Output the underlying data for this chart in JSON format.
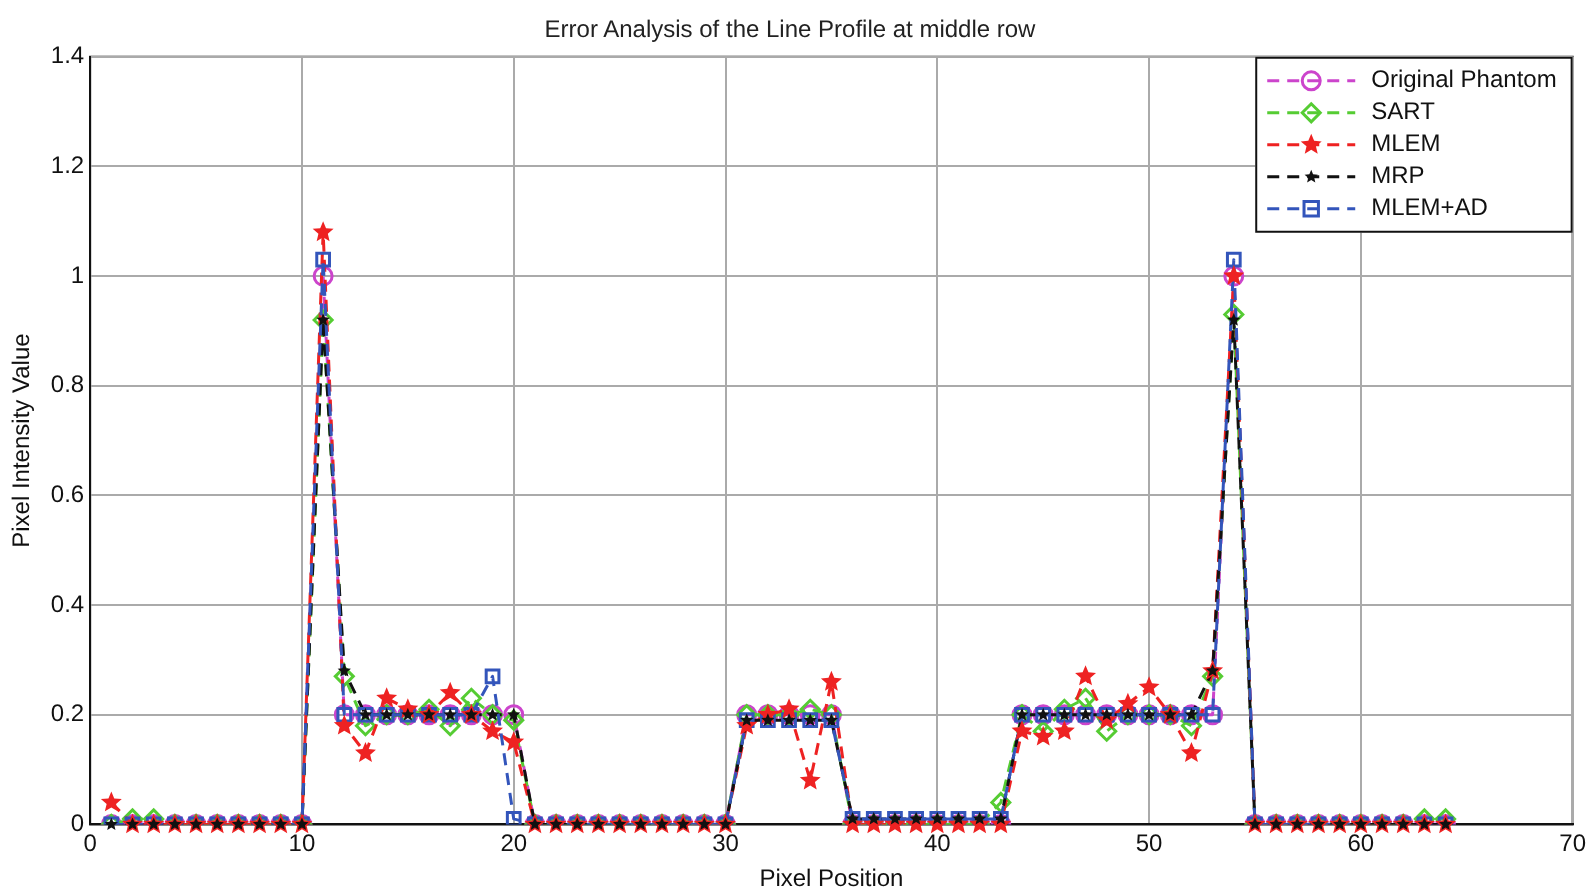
{
  "chart_data": {
    "type": "line",
    "title": "Error Analysis of the Line Profile at middle row",
    "xlabel": "Pixel Position",
    "ylabel": "Pixel Intensity Value",
    "x": [
      1,
      2,
      3,
      4,
      5,
      6,
      7,
      8,
      9,
      10,
      11,
      12,
      13,
      14,
      15,
      16,
      17,
      18,
      19,
      20,
      21,
      22,
      23,
      24,
      25,
      26,
      27,
      28,
      29,
      30,
      31,
      32,
      33,
      34,
      35,
      36,
      37,
      38,
      39,
      40,
      41,
      42,
      43,
      44,
      45,
      46,
      47,
      48,
      49,
      50,
      51,
      52,
      53,
      54,
      55,
      56,
      57,
      58,
      59,
      60,
      61,
      62,
      63,
      64
    ],
    "series": [
      {
        "name": "Original Phantom",
        "color": "#cc44cc",
        "marker": "circle",
        "values": [
          0,
          0,
          0,
          0,
          0,
          0,
          0,
          0,
          0,
          0,
          1,
          0.2,
          0.2,
          0.2,
          0.2,
          0.2,
          0.2,
          0.2,
          0.2,
          0.2,
          0,
          0,
          0,
          0,
          0,
          0,
          0,
          0,
          0,
          0,
          0.2,
          0.2,
          0.2,
          0.2,
          0.2,
          0,
          0,
          0,
          0,
          0,
          0,
          0,
          0,
          0.2,
          0.2,
          0.2,
          0.2,
          0.2,
          0.2,
          0.2,
          0.2,
          0.2,
          0.2,
          1,
          0,
          0,
          0,
          0,
          0,
          0,
          0,
          0,
          0,
          0
        ]
      },
      {
        "name": "SART",
        "color": "#55cc33",
        "marker": "diamond",
        "values": [
          0,
          0.01,
          0.01,
          0,
          0,
          0,
          0,
          0,
          0,
          0,
          0.92,
          0.27,
          0.18,
          0.2,
          0.2,
          0.21,
          0.18,
          0.23,
          0.2,
          0.19,
          0,
          0,
          0,
          0,
          0,
          0,
          0,
          0,
          0,
          0,
          0.2,
          0.2,
          0.2,
          0.21,
          0.2,
          0,
          0,
          0,
          0,
          0,
          0,
          0,
          0.04,
          0.2,
          0.17,
          0.21,
          0.23,
          0.17,
          0.2,
          0.2,
          0.2,
          0.18,
          0.27,
          0.93,
          0,
          0,
          0,
          0,
          0,
          0,
          0,
          0,
          0.01,
          0.01
        ]
      },
      {
        "name": "MLEM",
        "color": "#ee2222",
        "marker": "star",
        "values": [
          0.04,
          0,
          0,
          0,
          0,
          0,
          0,
          0,
          0,
          0,
          1.08,
          0.18,
          0.13,
          0.23,
          0.21,
          0.2,
          0.24,
          0.2,
          0.17,
          0.15,
          0,
          0,
          0,
          0,
          0,
          0,
          0,
          0,
          0,
          0,
          0.18,
          0.2,
          0.21,
          0.08,
          0.26,
          0,
          0,
          0,
          0,
          0,
          0,
          0,
          0,
          0.17,
          0.16,
          0.17,
          0.27,
          0.19,
          0.22,
          0.25,
          0.2,
          0.13,
          0.28,
          1,
          0,
          0,
          0,
          0,
          0,
          0,
          0,
          0,
          0,
          0
        ]
      },
      {
        "name": "MRP",
        "color": "#111111",
        "marker": "star",
        "values": [
          0,
          0,
          0,
          0,
          0,
          0,
          0,
          0,
          0,
          0,
          0.92,
          0.28,
          0.2,
          0.2,
          0.2,
          0.2,
          0.2,
          0.2,
          0.2,
          0.2,
          0,
          0,
          0,
          0,
          0,
          0,
          0,
          0,
          0,
          0,
          0.19,
          0.19,
          0.19,
          0.19,
          0.19,
          0.01,
          0.01,
          0.01,
          0.01,
          0.01,
          0.01,
          0.01,
          0.01,
          0.2,
          0.2,
          0.2,
          0.2,
          0.2,
          0.2,
          0.2,
          0.2,
          0.2,
          0.28,
          0.92,
          0,
          0,
          0,
          0,
          0,
          0,
          0,
          0,
          0,
          0
        ]
      },
      {
        "name": "MLEM+AD",
        "color": "#3355bb",
        "marker": "square",
        "values": [
          0,
          0,
          0,
          0,
          0,
          0,
          0,
          0,
          0,
          0,
          1.03,
          0.2,
          0.2,
          0.2,
          0.2,
          0.2,
          0.2,
          0.2,
          0.27,
          0.01,
          0,
          0,
          0,
          0,
          0,
          0,
          0,
          0,
          0,
          0,
          0.19,
          0.19,
          0.19,
          0.19,
          0.19,
          0.01,
          0.01,
          0.01,
          0.01,
          0.01,
          0.01,
          0.01,
          0.01,
          0.2,
          0.2,
          0.2,
          0.2,
          0.2,
          0.2,
          0.2,
          0.2,
          0.2,
          0.2,
          1.03,
          0,
          0,
          0,
          0,
          0,
          0,
          0,
          0,
          0,
          0
        ]
      }
    ],
    "xlim": [
      0,
      70
    ],
    "xticks": [
      0,
      10,
      20,
      30,
      40,
      50,
      60,
      70
    ],
    "ylim": [
      0,
      1.4
    ],
    "yticks": [
      0,
      0.2,
      0.4,
      0.6,
      0.8,
      1,
      1.2,
      1.4
    ],
    "grid": true,
    "legend": "top right",
    "line_style": "dashed"
  }
}
